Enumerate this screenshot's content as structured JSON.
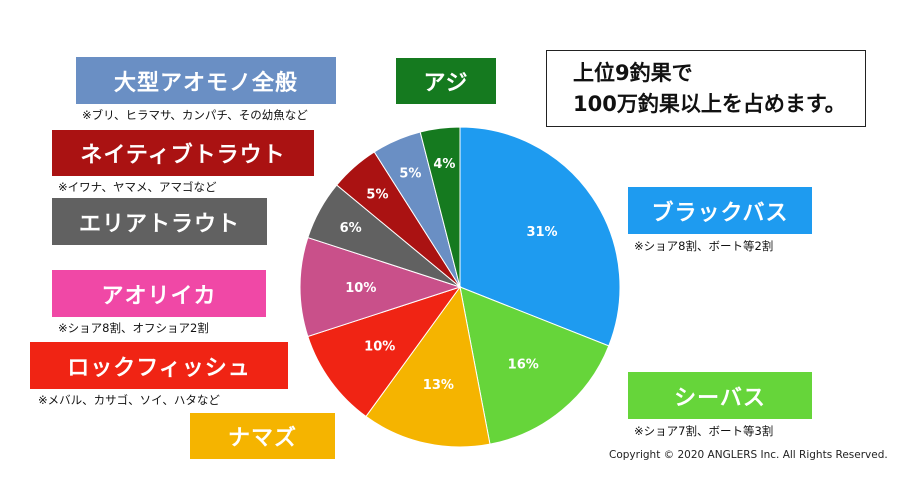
{
  "chart_data": {
    "type": "pie",
    "title": "",
    "slices": [
      {
        "label": "ブラックバス",
        "value": 31,
        "display": "31%",
        "color": "#1e9bf0",
        "note": "※ショア8割、ボート等2割"
      },
      {
        "label": "シーバス",
        "value": 16,
        "display": "16%",
        "color": "#66d53a",
        "note": "※ショア7割、ボート等3割"
      },
      {
        "label": "ナマズ",
        "value": 13,
        "display": "13%",
        "color": "#f5b400",
        "note": ""
      },
      {
        "label": "ロックフィッシュ",
        "value": 10,
        "display": "10%",
        "color": "#f02414",
        "note": "※メバル、カサゴ、ソイ、ハタなど"
      },
      {
        "label": "アオリイカ",
        "value": 10,
        "display": "10%",
        "color": "#c9508a",
        "note": "※ショア8割、オフショア2割"
      },
      {
        "label": "エリアトラウト",
        "value": 6,
        "display": "6%",
        "color": "#616161",
        "note": ""
      },
      {
        "label": "ネイティブトラウト",
        "value": 5,
        "display": "5%",
        "color": "#aa1212",
        "note": "※イワナ、ヤマメ、アマゴなど"
      },
      {
        "label": "大型アオモノ全般",
        "value": 5,
        "display": "5%",
        "color": "#6a8fc4",
        "note": "※ブリ、ヒラマサ、カンパチ、その幼魚など"
      },
      {
        "label": "アジ",
        "value": 4,
        "display": "4%",
        "color": "#157a1f",
        "note": ""
      }
    ]
  },
  "labels": {
    "blackbass": "ブラックバス",
    "blackbass_note": "※ショア8割、ボート等2割",
    "seabass": "シーバス",
    "seabass_note": "※ショア7割、ボート等3割",
    "namazu": "ナマズ",
    "rockfish": "ロックフィッシュ",
    "rockfish_note": "※メバル、カサゴ、ソイ、ハタなど",
    "aori": "アオリイカ",
    "aori_note": "※ショア8割、オフショア2割",
    "area_trout": "エリアトラウト",
    "native_trout": "ネイティブトラウト",
    "native_trout_note": "※イワナ、ヤマメ、アマゴなど",
    "aomono": "大型アオモノ全般",
    "aomono_note": "※ブリ、ヒラマサ、カンパチ、その幼魚など",
    "aji": "アジ"
  },
  "callout": {
    "line1": "上位9釣果で",
    "line2": "100万釣果以上を占めます。"
  },
  "copyright": "Copyright © 2020 ANGLERS Inc. All Rights Reserved."
}
